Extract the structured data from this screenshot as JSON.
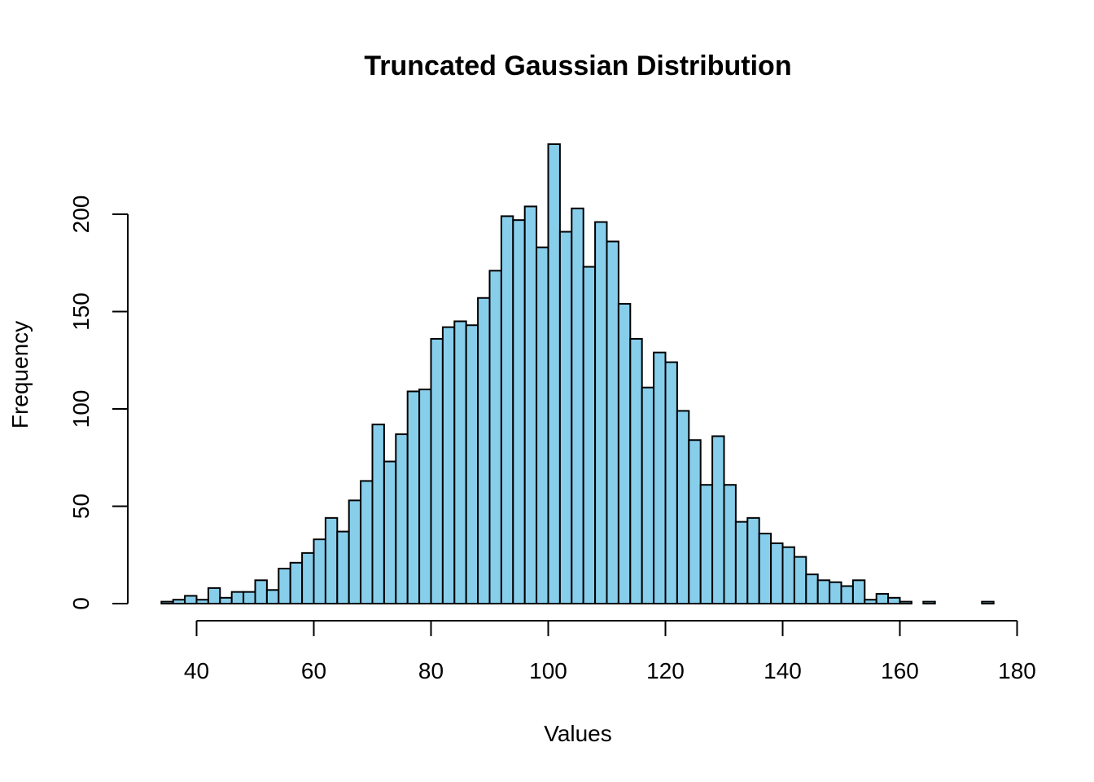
{
  "chart_data": {
    "type": "bar",
    "title": "Truncated Gaussian Distribution",
    "xlabel": "Values",
    "ylabel": "Frequency",
    "xlim": [
      40,
      180
    ],
    "ylim": [
      0,
      200
    ],
    "bar_color": "#87ceeb",
    "border_color": "#000000",
    "x_ticks": [
      "40",
      "60",
      "80",
      "100",
      "120",
      "140",
      "160",
      "180"
    ],
    "y_ticks": [
      "0",
      "50",
      "100",
      "150",
      "200"
    ],
    "bin_width": 2,
    "bins_start": 34,
    "values": [
      1,
      2,
      4,
      2,
      8,
      3,
      6,
      6,
      12,
      7,
      18,
      21,
      26,
      33,
      44,
      37,
      53,
      63,
      92,
      73,
      87,
      109,
      110,
      136,
      142,
      145,
      143,
      157,
      171,
      199,
      197,
      204,
      183,
      236,
      191,
      203,
      173,
      196,
      186,
      154,
      136,
      111,
      129,
      124,
      99,
      84,
      61,
      86,
      61,
      42,
      44,
      36,
      31,
      29,
      24,
      15,
      12,
      11,
      9,
      12,
      2,
      5,
      3,
      1,
      0,
      1,
      0,
      0,
      0,
      0,
      1
    ]
  }
}
